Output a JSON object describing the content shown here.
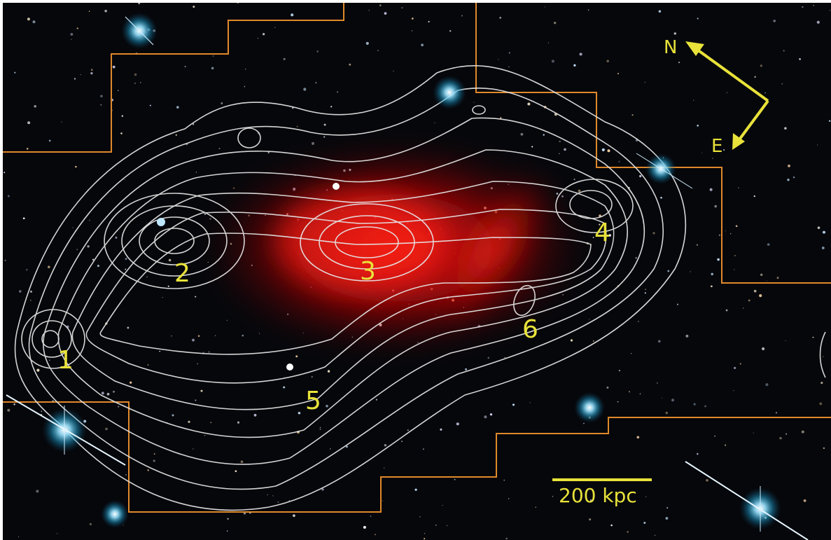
{
  "image": {
    "subject": "galaxy-cluster-composite",
    "colors": {
      "background": "#06070b",
      "footprint_outline": "#e0892a",
      "contour_lines": "#e6e6e6",
      "hot_gas": "#ff1010",
      "annotation": "#e8e23a",
      "bright_star": "#1fa6d8"
    }
  },
  "peak_labels": [
    "1",
    "2",
    "3",
    "4",
    "5",
    "6"
  ],
  "compass": {
    "north_label": "N",
    "east_label": "E"
  },
  "scale_bar": {
    "label": "200 kpc"
  }
}
